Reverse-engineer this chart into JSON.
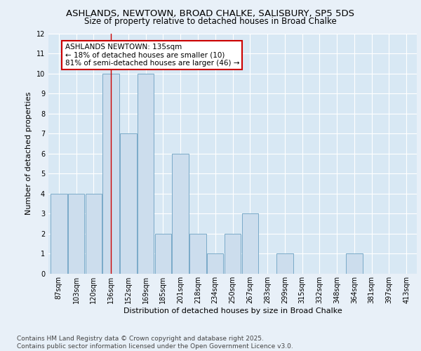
{
  "title_line1": "ASHLANDS, NEWTOWN, BROAD CHALKE, SALISBURY, SP5 5DS",
  "title_line2": "Size of property relative to detached houses in Broad Chalke",
  "xlabel": "Distribution of detached houses by size in Broad Chalke",
  "ylabel": "Number of detached properties",
  "categories": [
    "87sqm",
    "103sqm",
    "120sqm",
    "136sqm",
    "152sqm",
    "169sqm",
    "185sqm",
    "201sqm",
    "218sqm",
    "234sqm",
    "250sqm",
    "267sqm",
    "283sqm",
    "299sqm",
    "315sqm",
    "332sqm",
    "348sqm",
    "364sqm",
    "381sqm",
    "397sqm",
    "413sqm"
  ],
  "values": [
    4,
    4,
    4,
    10,
    7,
    10,
    2,
    6,
    2,
    1,
    2,
    3,
    0,
    1,
    0,
    0,
    0,
    1,
    0,
    0,
    0
  ],
  "bar_color": "#ccdded",
  "bar_edge_color": "#7aaac8",
  "fig_background_color": "#e8f0f8",
  "plot_background_color": "#d8e8f4",
  "grid_color": "#ffffff",
  "vline_x_index": 3,
  "vline_color": "#cc0000",
  "annotation_text": "ASHLANDS NEWTOWN: 135sqm\n← 18% of detached houses are smaller (10)\n81% of semi-detached houses are larger (46) →",
  "annotation_box_facecolor": "#ffffff",
  "annotation_box_edgecolor": "#cc0000",
  "ylim": [
    0,
    12
  ],
  "yticks": [
    0,
    1,
    2,
    3,
    4,
    5,
    6,
    7,
    8,
    9,
    10,
    11,
    12
  ],
  "footer_text": "Contains HM Land Registry data © Crown copyright and database right 2025.\nContains public sector information licensed under the Open Government Licence v3.0.",
  "title1_fontsize": 9.5,
  "title2_fontsize": 8.5,
  "axis_label_fontsize": 8,
  "tick_fontsize": 7,
  "annotation_fontsize": 7.5,
  "footer_fontsize": 6.5,
  "ylabel_fontsize": 8
}
